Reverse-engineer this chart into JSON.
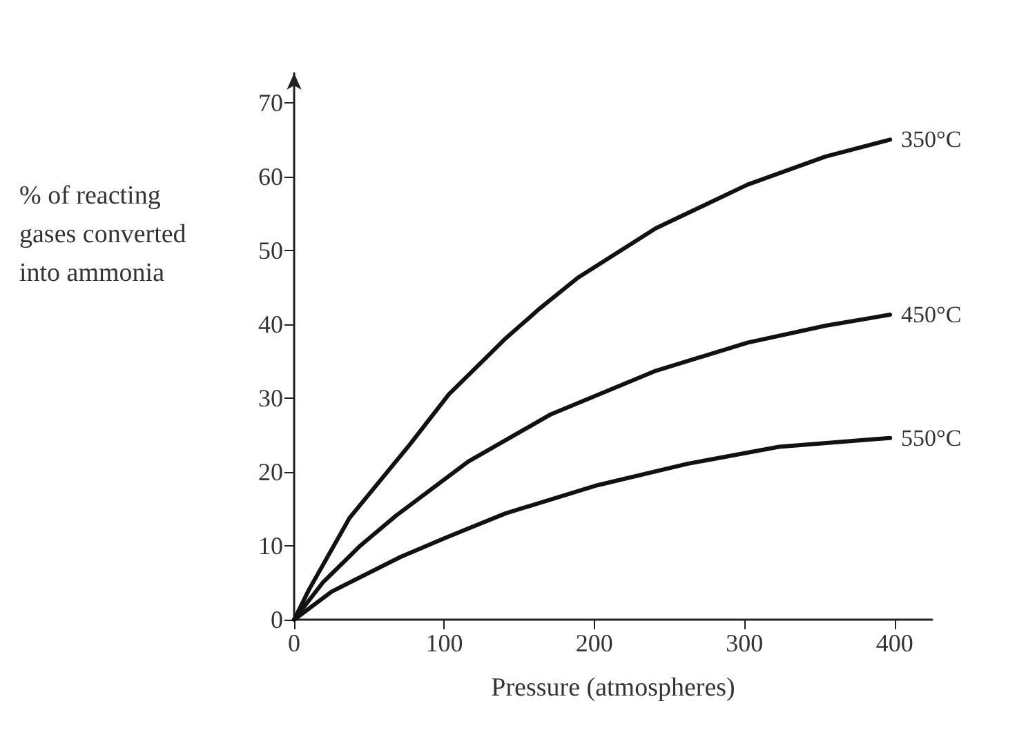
{
  "chart_data": {
    "type": "line",
    "xlabel": "Pressure (atmospheres)",
    "ylabel": "% of reacting gases converted into ammonia",
    "xlim": [
      0,
      425
    ],
    "ylim": [
      0,
      74
    ],
    "xticks": [
      0,
      100,
      200,
      300,
      400
    ],
    "yticks": [
      0,
      10,
      20,
      30,
      40,
      50,
      60,
      70
    ],
    "grid": false,
    "legend": false,
    "marker": "none",
    "line_style": "solid",
    "series": [
      {
        "name": "350°C",
        "color": "#111111",
        "x": [
          0,
          10,
          37,
          77,
          103,
          141,
          164,
          189,
          241,
          302,
          354,
          397
        ],
        "values": [
          0,
          4.1,
          13.8,
          23.7,
          30.5,
          38.1,
          42.2,
          46.3,
          53,
          58.9,
          62.7,
          65
        ]
      },
      {
        "name": "450°C",
        "color": "#111111",
        "x": [
          0,
          19,
          44,
          68,
          116,
          171,
          241,
          302,
          354,
          397
        ],
        "values": [
          0,
          5,
          10,
          14.1,
          21.4,
          27.8,
          33.7,
          37.5,
          39.8,
          41.3
        ]
      },
      {
        "name": "550°C",
        "color": "#111111",
        "x": [
          0,
          25,
          71,
          101,
          141,
          202,
          262,
          323,
          397
        ],
        "values": [
          0,
          3.8,
          8.5,
          11.1,
          14.4,
          18.2,
          21.1,
          23.4,
          24.6
        ]
      }
    ]
  }
}
